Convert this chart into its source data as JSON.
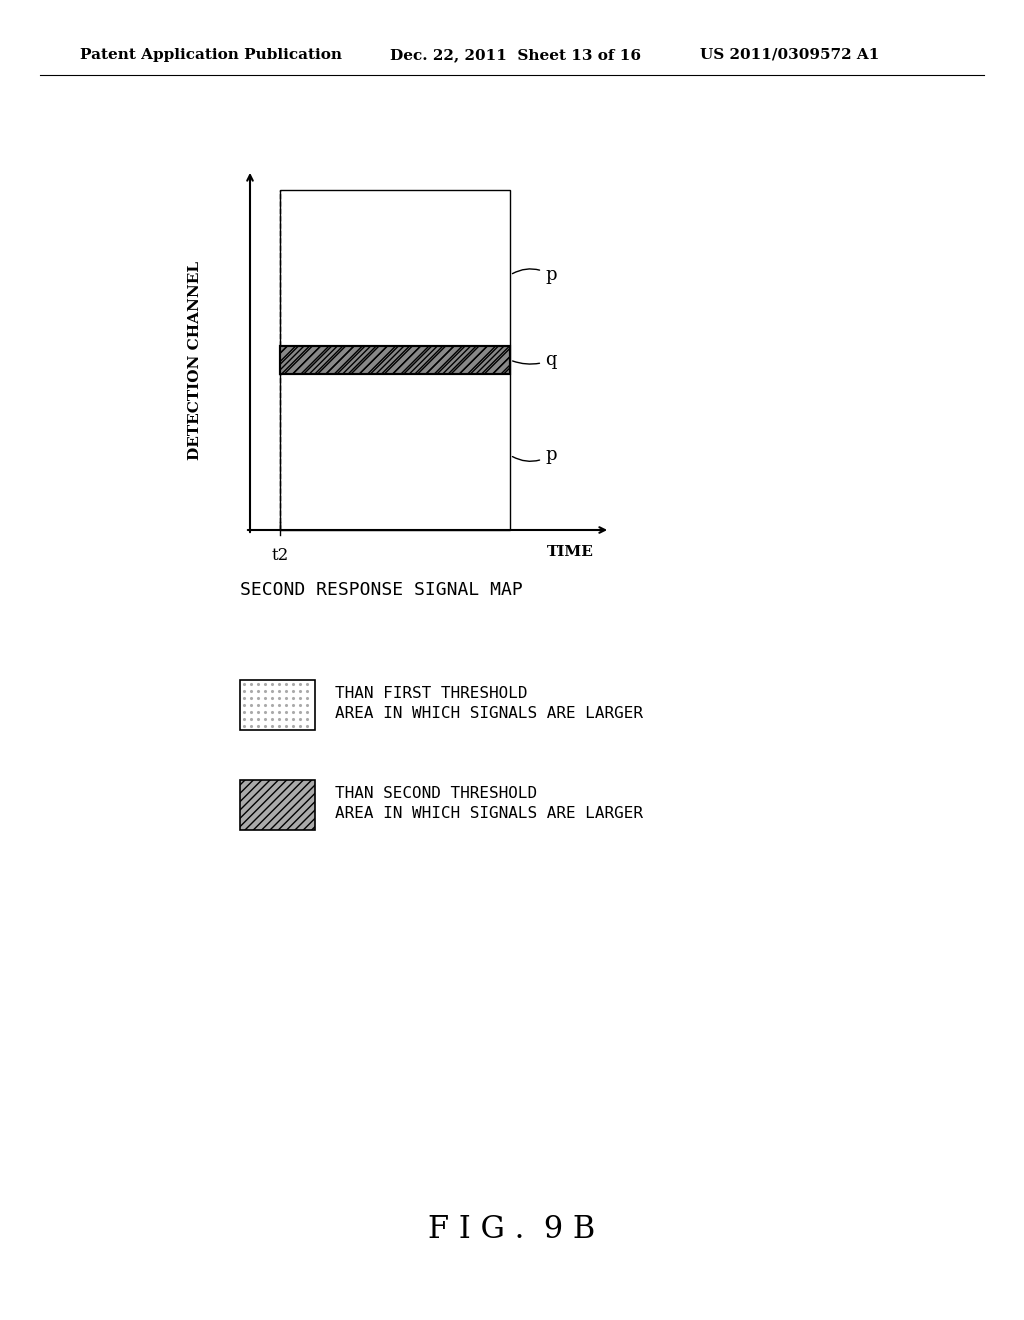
{
  "background_color": "#ffffff",
  "header_left": "Patent Application Publication",
  "header_mid": "Dec. 22, 2011  Sheet 13 of 16",
  "header_right": "US 2011/0309572 A1",
  "ylabel": "DETECTION CHANNEL",
  "xlabel": "TIME",
  "t2_label": "t2",
  "p_label": "p",
  "q_label": "q",
  "title_label": "SECOND RESPONSE SIGNAL MAP",
  "legend1_text1": "AREA IN WHICH SIGNALS ARE LARGER",
  "legend1_text2": "THAN FIRST THRESHOLD",
  "legend2_text1": "AREA IN WHICH SIGNALS ARE LARGER",
  "legend2_text2": "THAN SECOND THRESHOLD",
  "figure_label": "F I G .  9 B",
  "dot_color": "#cccccc",
  "hatch_color": "#666666",
  "outline_color": "#000000"
}
